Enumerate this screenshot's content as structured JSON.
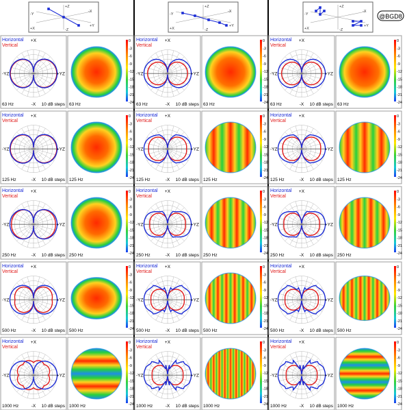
{
  "watermark": "@BGD8",
  "labels": {
    "horizontal": "Horizontal",
    "vertical": "Vertical",
    "steps": "10 dB steps",
    "plus_x": "+X",
    "minus_x": "-X",
    "minus_yz": "-YZ",
    "plus_yz": "+YZ"
  },
  "schematic_axes": {
    "plus_z": "+Z",
    "minus_z": "-Z",
    "plus_y": "+Y",
    "minus_y": "-Y",
    "plus_x": "+X",
    "minus_x": "-X"
  },
  "colorbar_ticks": [
    "0",
    "-3",
    "-6",
    "-9",
    "-12",
    "-15",
    "-18",
    "-21",
    "-24"
  ],
  "frequencies": [
    "63 Hz",
    "125 Hz",
    "250 Hz",
    "500 Hz",
    "1000 Hz"
  ],
  "colors": {
    "horizontal": "#1a2bd6",
    "vertical": "#e01818",
    "grid": "#9a9a9a",
    "heat_hot": "#ff2a00",
    "heat_mid": "#ffd21f",
    "heat_cool": "#27d03d",
    "heat_cold": "#1d8fe6"
  },
  "configurations": [
    {
      "name": "column-1",
      "schematic": "three-element"
    },
    {
      "name": "column-2",
      "schematic": "five-element"
    },
    {
      "name": "column-3",
      "schematic": "cluster"
    }
  ]
}
